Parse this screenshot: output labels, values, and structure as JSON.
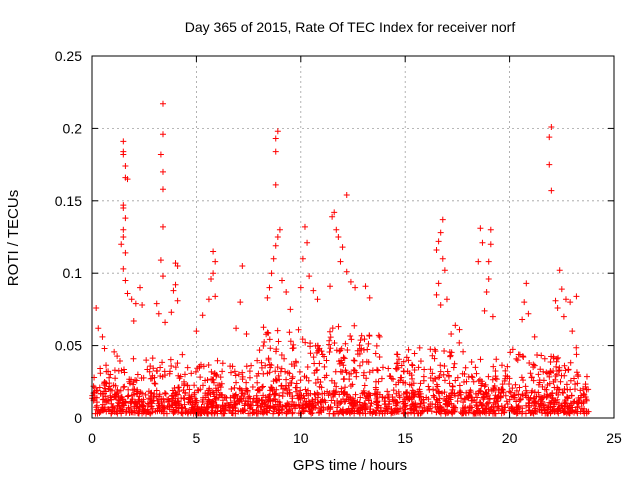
{
  "chart_data": {
    "type": "scatter",
    "title": "Day 365 of 2015, Rate Of TEC Index for receiver norf",
    "xlabel": "GPS time / hours",
    "ylabel": "ROTI / TECUs",
    "xlim": [
      0,
      25
    ],
    "ylim": [
      0,
      0.25
    ],
    "xticks": [
      0,
      5,
      10,
      15,
      20,
      25
    ],
    "xtick_labels": [
      "0",
      "5",
      "10",
      "15",
      "20",
      "25"
    ],
    "yticks": [
      0,
      0.05,
      0.1,
      0.15,
      0.2,
      0.25
    ],
    "ytick_labels": [
      "0",
      "0.05",
      "0.1",
      "0.15",
      "0.2",
      "0.25"
    ],
    "grid": true,
    "marker": "+",
    "color": "#ff0000",
    "series": [
      {
        "name": "ROTI",
        "points": [
          [
            0.2,
            0.076
          ],
          [
            0.3,
            0.062
          ],
          [
            0.5,
            0.056
          ],
          [
            0.6,
            0.048
          ],
          [
            0.1,
            0.028
          ],
          [
            1.5,
            0.191
          ],
          [
            1.5,
            0.184
          ],
          [
            1.5,
            0.182
          ],
          [
            1.6,
            0.174
          ],
          [
            1.6,
            0.166
          ],
          [
            1.7,
            0.165
          ],
          [
            1.5,
            0.147
          ],
          [
            1.5,
            0.145
          ],
          [
            1.6,
            0.138
          ],
          [
            1.5,
            0.13
          ],
          [
            1.5,
            0.125
          ],
          [
            1.4,
            0.12
          ],
          [
            1.6,
            0.114
          ],
          [
            1.5,
            0.103
          ],
          [
            1.6,
            0.095
          ],
          [
            1.7,
            0.086
          ],
          [
            1.9,
            0.082
          ],
          [
            2.1,
            0.079
          ],
          [
            2.3,
            0.09
          ],
          [
            2.4,
            0.078
          ],
          [
            2.0,
            0.067
          ],
          [
            3.4,
            0.217
          ],
          [
            3.4,
            0.196
          ],
          [
            3.3,
            0.182
          ],
          [
            3.4,
            0.17
          ],
          [
            3.4,
            0.158
          ],
          [
            3.4,
            0.132
          ],
          [
            3.3,
            0.109
          ],
          [
            3.4,
            0.098
          ],
          [
            3.1,
            0.079
          ],
          [
            3.2,
            0.072
          ],
          [
            3.5,
            0.066
          ],
          [
            4.0,
            0.107
          ],
          [
            4.1,
            0.105
          ],
          [
            4.0,
            0.092
          ],
          [
            3.9,
            0.088
          ],
          [
            4.1,
            0.081
          ],
          [
            3.8,
            0.073
          ],
          [
            5.8,
            0.115
          ],
          [
            5.9,
            0.108
          ],
          [
            5.8,
            0.1
          ],
          [
            5.7,
            0.096
          ],
          [
            5.9,
            0.084
          ],
          [
            5.6,
            0.082
          ],
          [
            5.3,
            0.071
          ],
          [
            5.0,
            0.06
          ],
          [
            7.2,
            0.105
          ],
          [
            7.1,
            0.08
          ],
          [
            6.9,
            0.062
          ],
          [
            7.4,
            0.058
          ],
          [
            8.9,
            0.198
          ],
          [
            8.8,
            0.193
          ],
          [
            8.8,
            0.184
          ],
          [
            8.8,
            0.161
          ],
          [
            9.0,
            0.13
          ],
          [
            8.9,
            0.125
          ],
          [
            8.8,
            0.119
          ],
          [
            8.7,
            0.11
          ],
          [
            8.6,
            0.1
          ],
          [
            8.5,
            0.09
          ],
          [
            8.4,
            0.083
          ],
          [
            9.1,
            0.095
          ],
          [
            9.3,
            0.087
          ],
          [
            9.5,
            0.075
          ],
          [
            10.2,
            0.132
          ],
          [
            10.3,
            0.121
          ],
          [
            10.1,
            0.11
          ],
          [
            10.4,
            0.098
          ],
          [
            10.0,
            0.09
          ],
          [
            10.6,
            0.088
          ],
          [
            10.8,
            0.082
          ],
          [
            11.6,
            0.142
          ],
          [
            11.5,
            0.139
          ],
          [
            11.7,
            0.13
          ],
          [
            11.8,
            0.125
          ],
          [
            12.2,
            0.154
          ],
          [
            12.0,
            0.118
          ],
          [
            11.9,
            0.108
          ],
          [
            12.2,
            0.101
          ],
          [
            12.4,
            0.094
          ],
          [
            11.4,
            0.091
          ],
          [
            12.6,
            0.09
          ],
          [
            13.1,
            0.091
          ],
          [
            13.3,
            0.083
          ],
          [
            16.8,
            0.137
          ],
          [
            16.7,
            0.128
          ],
          [
            16.6,
            0.122
          ],
          [
            16.5,
            0.116
          ],
          [
            16.8,
            0.11
          ],
          [
            16.9,
            0.102
          ],
          [
            16.6,
            0.093
          ],
          [
            16.5,
            0.085
          ],
          [
            17.0,
            0.082
          ],
          [
            16.7,
            0.078
          ],
          [
            17.4,
            0.064
          ],
          [
            17.6,
            0.061
          ],
          [
            17.2,
            0.058
          ],
          [
            18.6,
            0.131
          ],
          [
            18.7,
            0.121
          ],
          [
            18.5,
            0.108
          ],
          [
            19.1,
            0.13
          ],
          [
            19.1,
            0.12
          ],
          [
            19.0,
            0.108
          ],
          [
            19.0,
            0.096
          ],
          [
            18.9,
            0.087
          ],
          [
            19.2,
            0.07
          ],
          [
            18.8,
            0.074
          ],
          [
            20.8,
            0.093
          ],
          [
            20.7,
            0.08
          ],
          [
            20.9,
            0.072
          ],
          [
            20.6,
            0.068
          ],
          [
            21.2,
            0.056
          ],
          [
            22.0,
            0.201
          ],
          [
            21.9,
            0.194
          ],
          [
            21.9,
            0.175
          ],
          [
            22.0,
            0.157
          ],
          [
            22.4,
            0.102
          ],
          [
            22.5,
            0.089
          ],
          [
            22.2,
            0.081
          ],
          [
            22.7,
            0.082
          ],
          [
            22.9,
            0.08
          ],
          [
            23.2,
            0.084
          ],
          [
            22.3,
            0.076
          ],
          [
            22.6,
            0.07
          ],
          [
            23.0,
            0.06
          ]
        ]
      }
    ],
    "background_noise": {
      "x_range": [
        0.0,
        23.8
      ],
      "typical_range": [
        0.003,
        0.055
      ],
      "description": "dense cloud of points across the day"
    }
  }
}
